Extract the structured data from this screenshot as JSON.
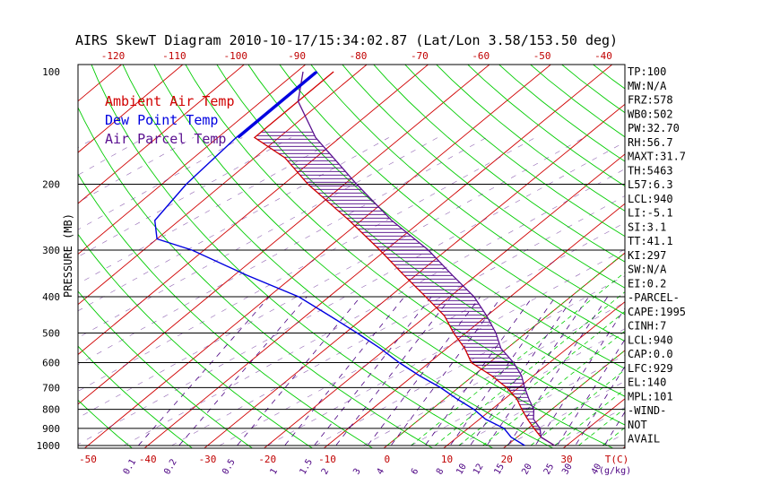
{
  "chart_data": {
    "type": "skewt",
    "title": "AIRS SkewT Diagram 2010-10-17/15:34:02.87 (Lat/Lon 3.58/153.50 deg)",
    "ylabel": "PRESSURE (MB)",
    "pressure_ticks": [
      100,
      200,
      300,
      400,
      500,
      600,
      700,
      800,
      900,
      1000
    ],
    "pressure_range": [
      100,
      1050
    ],
    "top_temp_ticks": [
      -120,
      -110,
      -100,
      -90,
      -80,
      -70,
      -60,
      -50,
      -40
    ],
    "bottom_temp_ticks": [
      -50,
      -40,
      -30,
      -20,
      -10,
      0,
      10,
      20,
      30
    ],
    "bottom_unit": "T(C)",
    "mixing_ratio_labels": [
      "0.1",
      "0.2",
      "0.5",
      "1",
      "1.5",
      "2",
      "3",
      "4",
      "6",
      "8",
      "10",
      "12",
      "15",
      "20",
      "25",
      "30",
      "40"
    ],
    "mixing_ratio_unit": "(g/kg)",
    "legend": [
      {
        "label": "Ambient Air Temp",
        "color": "#d00000"
      },
      {
        "label": "Dew Point Temp",
        "color": "#0000e0"
      },
      {
        "label": "Air Parcel Temp",
        "color": "#5a1090"
      }
    ],
    "series": [
      {
        "name": "Ambient Air Temp",
        "color": "#d00000",
        "points": [
          [
            100,
            -84
          ],
          [
            150,
            -84
          ],
          [
            170,
            -75
          ],
          [
            200,
            -66
          ],
          [
            250,
            -52
          ],
          [
            300,
            -41
          ],
          [
            350,
            -32
          ],
          [
            400,
            -24
          ],
          [
            450,
            -17
          ],
          [
            500,
            -12
          ],
          [
            550,
            -7
          ],
          [
            600,
            -3
          ],
          [
            650,
            3
          ],
          [
            700,
            8
          ],
          [
            750,
            12
          ],
          [
            800,
            15
          ],
          [
            850,
            18
          ],
          [
            900,
            21
          ],
          [
            950,
            24
          ],
          [
            1000,
            28
          ]
        ]
      },
      {
        "name": "Dew Point Temp",
        "color": "#0000e0",
        "points": [
          [
            100,
            -87
          ],
          [
            150,
            -87
          ],
          [
            200,
            -86
          ],
          [
            250,
            -84
          ],
          [
            280,
            -80
          ],
          [
            300,
            -72
          ],
          [
            350,
            -58
          ],
          [
            400,
            -45
          ],
          [
            450,
            -36
          ],
          [
            500,
            -28
          ],
          [
            550,
            -21
          ],
          [
            600,
            -15
          ],
          [
            650,
            -9
          ],
          [
            700,
            -3
          ],
          [
            750,
            2
          ],
          [
            800,
            7
          ],
          [
            850,
            11
          ],
          [
            900,
            16
          ],
          [
            950,
            19
          ],
          [
            1000,
            23
          ]
        ]
      },
      {
        "name": "Air Parcel Temp",
        "color": "#5a1090",
        "points": [
          [
            100,
            -89
          ],
          [
            120,
            -84
          ],
          [
            150,
            -74
          ],
          [
            200,
            -58
          ],
          [
            250,
            -45
          ],
          [
            300,
            -33
          ],
          [
            350,
            -24
          ],
          [
            400,
            -16
          ],
          [
            450,
            -10
          ],
          [
            500,
            -5
          ],
          [
            550,
            -1
          ],
          [
            600,
            4
          ],
          [
            650,
            8
          ],
          [
            700,
            11
          ],
          [
            750,
            14
          ],
          [
            800,
            17
          ],
          [
            850,
            19
          ],
          [
            900,
            22
          ],
          [
            950,
            24
          ],
          [
            1000,
            28
          ]
        ]
      }
    ],
    "indices": [
      "TP:100",
      "MW:N/A",
      "FRZ:578",
      "WB0:502",
      "PW:32.70",
      "RH:56.7",
      "MAXT:31.7",
      "TH:5463",
      "L57:6.3",
      "LCL:940",
      "LI:-5.1",
      "SI:3.1",
      "TT:41.1",
      "KI:297",
      "SW:N/A",
      "EI:0.2",
      "-PARCEL-",
      "CAPE:1995",
      "CINH:7",
      "LCL:940",
      "CAP:0.0",
      "LFC:929",
      "EL:140",
      "MPL:101",
      "-WIND-",
      "NOT",
      "AVAIL"
    ],
    "colors": {
      "isotherm": "#d00000",
      "dry_adiabat": "#00cc00",
      "moist_adiabat": "#00cc00",
      "mixing_ratio": "#4b0082",
      "isobar": "#000000",
      "cape_hatch": "#4b0082"
    }
  }
}
